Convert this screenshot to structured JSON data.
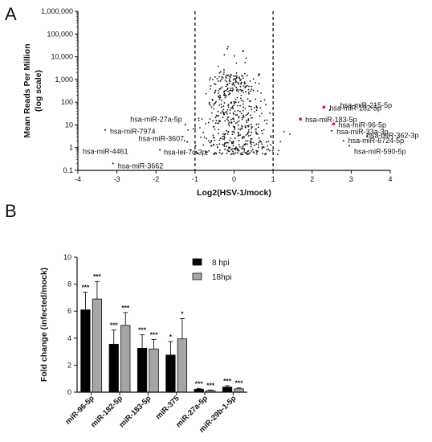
{
  "panel_labels": [
    "A",
    "B"
  ],
  "chart_data": [
    {
      "type": "scatter",
      "panel": "A",
      "xlabel": "Log2(HSV-1/mock)",
      "ylabel": "Mean Reads Per Million",
      "ylabel_sub": "(log scale)",
      "xlim": [
        -4,
        4
      ],
      "x_ticks": [
        "-4",
        "-3",
        "-2",
        "-1",
        "0",
        "1",
        "2",
        "3",
        "4"
      ],
      "y_scale": "log",
      "ylim": [
        0.1,
        1000000
      ],
      "y_ticks": [
        "0.1",
        "1",
        "10",
        "100",
        "1,000",
        "10,000",
        "100,000",
        "1,000,000"
      ],
      "threshold_lines_x": [
        -1,
        1
      ],
      "highlight_color": "#e8192c",
      "point_color": "#111111",
      "labeled_points": [
        {
          "label": "hsa-miR-215-5p",
          "x": 2.45,
          "y": 45
        },
        {
          "label": "hsa-miR-182-5p",
          "x": 2.3,
          "y": 60,
          "highlight": true
        },
        {
          "label": "hsa-miR-183-5p",
          "x": 1.7,
          "y": 18,
          "highlight": true
        },
        {
          "label": "hsa-miR-96-5p",
          "x": 2.55,
          "y": 11,
          "highlight": true
        },
        {
          "label": "hsa-miR-33a-3p",
          "x": 2.5,
          "y": 5.5
        },
        {
          "label": "hsa-miR-362-3p",
          "x": 3.4,
          "y": 3.2
        },
        {
          "label": "hsa-miR-6724-5p",
          "x": 2.8,
          "y": 2
        },
        {
          "label": "hsa-miR-590-5p",
          "x": 2.95,
          "y": 1.2
        },
        {
          "label": "hsa-miR-27a-5p",
          "x": -1.25,
          "y": 10
        },
        {
          "label": "hsa-miR-7974",
          "x": -3.3,
          "y": 6
        },
        {
          "label": "hsa-miR-3607",
          "x": -1.2,
          "y": 1.8
        },
        {
          "label": "hsa-miR-4461",
          "x": -4.0,
          "y": 0.85
        },
        {
          "label": "hsa-let-7c-3p",
          "x": -1.9,
          "y": 0.8
        },
        {
          "label": "hsa-miR-3662",
          "x": -3.1,
          "y": 0.2
        }
      ]
    },
    {
      "type": "bar",
      "panel": "B",
      "ylabel": "Fold change (infected/mock)",
      "ylim": [
        0,
        10
      ],
      "y_ticks": [
        "0",
        "2",
        "4",
        "6",
        "8",
        "10"
      ],
      "categories": [
        "miR-96-5p",
        "miR-182-5p",
        "miR-183-5p",
        "miR-375",
        "miR-27a-5p",
        "miR-29b-1-5p"
      ],
      "series": [
        {
          "name": "8 hpi",
          "color": "#000000",
          "values": [
            6.1,
            3.55,
            3.25,
            2.75,
            0.22,
            0.38
          ],
          "errors": [
            1.3,
            1.05,
            1.0,
            1.0,
            0.06,
            0.1
          ],
          "significance": [
            "***",
            "***",
            "***",
            "*",
            "***",
            "***"
          ]
        },
        {
          "name": "18hpi",
          "color": "#a6a6a6",
          "values": [
            6.9,
            4.95,
            3.2,
            3.95,
            0.12,
            0.25
          ],
          "errors": [
            1.3,
            0.95,
            0.7,
            1.5,
            0.04,
            0.07
          ],
          "significance": [
            "***",
            "***",
            "***",
            "*",
            "***",
            "***"
          ]
        }
      ],
      "legend_position": "top-right"
    }
  ]
}
